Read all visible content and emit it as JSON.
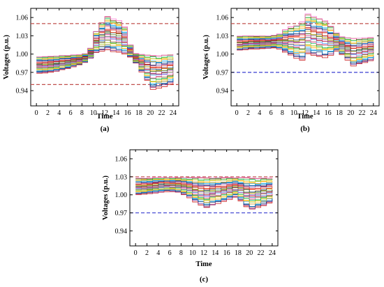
{
  "chart_data": [
    {
      "type": "line",
      "panel_label": "(a)",
      "xlabel": "Time",
      "ylabel": "Voltages (p.u.)",
      "xlim": [
        -1,
        25
      ],
      "ylim": [
        0.915,
        1.075
      ],
      "xticks": [
        0,
        2,
        4,
        6,
        8,
        10,
        12,
        14,
        16,
        18,
        20,
        22,
        24
      ],
      "yticks": [
        0.94,
        0.97,
        1.0,
        1.03,
        1.06
      ],
      "ytick_labels": [
        "0.94",
        "0.97",
        "1.00",
        "1.03",
        "1.06"
      ],
      "grid": false,
      "limits": [
        {
          "value": 1.05,
          "color": "#c0504d",
          "style": "dashed"
        },
        {
          "value": 0.95,
          "color": "#c0504d",
          "style": "dashed"
        }
      ],
      "band": [
        0.966,
        1.0
      ],
      "envelope": {
        "x": [
          0,
          1,
          2,
          3,
          4,
          5,
          6,
          7,
          8,
          9,
          10,
          11,
          12,
          13,
          14,
          15,
          16,
          17,
          18,
          19,
          20,
          21,
          22,
          23,
          24
        ],
        "low": [
          0.968,
          0.969,
          0.97,
          0.971,
          0.974,
          0.976,
          0.979,
          0.982,
          0.986,
          0.993,
          1.002,
          1.005,
          1.006,
          1.004,
          1.003,
          1.0,
          0.995,
          0.985,
          0.97,
          0.956,
          0.942,
          0.944,
          0.946,
          0.95,
          0.955
        ],
        "high": [
          0.996,
          0.996,
          0.997,
          0.997,
          0.998,
          0.998,
          0.999,
          0.999,
          1.001,
          1.01,
          1.038,
          1.052,
          1.062,
          1.058,
          1.055,
          1.045,
          1.015,
          1.001,
          1.0,
          0.999,
          0.998,
          0.998,
          0.999,
          0.999,
          1.0
        ]
      },
      "series_count": 32
    },
    {
      "type": "line",
      "panel_label": "(b)",
      "xlabel": "Time",
      "ylabel": "Voltages (p.u.)",
      "xlim": [
        -1,
        25
      ],
      "ylim": [
        0.915,
        1.075
      ],
      "xticks": [
        0,
        2,
        4,
        6,
        8,
        10,
        12,
        14,
        16,
        18,
        20,
        22,
        24
      ],
      "yticks": [
        0.94,
        0.97,
        1.0,
        1.03,
        1.06
      ],
      "ytick_labels": [
        "0.94",
        "0.97",
        "1.00",
        "1.03",
        "1.06"
      ],
      "grid": false,
      "limits": [
        {
          "value": 1.05,
          "color": "#c0504d",
          "style": "dashed"
        },
        {
          "value": 0.97,
          "color": "#3a3fd0",
          "style": "dashed"
        }
      ],
      "band": [
        1.005,
        1.03
      ],
      "envelope": {
        "x": [
          0,
          1,
          2,
          3,
          4,
          5,
          6,
          7,
          8,
          9,
          10,
          11,
          12,
          13,
          14,
          15,
          16,
          17,
          18,
          19,
          20,
          21,
          22,
          23,
          24
        ],
        "low": [
          1.006,
          1.007,
          1.008,
          1.008,
          1.009,
          1.009,
          1.01,
          1.008,
          1.003,
          0.998,
          0.992,
          0.99,
          1.0,
          0.998,
          0.996,
          0.994,
          0.998,
          1.005,
          0.999,
          0.99,
          0.98,
          0.983,
          0.986,
          0.989,
          0.993
        ],
        "high": [
          1.03,
          1.03,
          1.03,
          1.03,
          1.03,
          1.03,
          1.031,
          1.033,
          1.04,
          1.045,
          1.048,
          1.053,
          1.066,
          1.062,
          1.058,
          1.055,
          1.046,
          1.035,
          1.029,
          1.027,
          1.026,
          1.026,
          1.027,
          1.028,
          1.028
        ]
      },
      "series_count": 32
    },
    {
      "type": "line",
      "panel_label": "(c)",
      "xlabel": "Time",
      "ylabel": "Voltages (p.u.)",
      "xlim": [
        -1,
        25
      ],
      "ylim": [
        0.915,
        1.075
      ],
      "xticks": [
        0,
        2,
        4,
        6,
        8,
        10,
        12,
        14,
        16,
        18,
        20,
        22,
        24
      ],
      "yticks": [
        0.94,
        0.97,
        1.0,
        1.03,
        1.06
      ],
      "ytick_labels": [
        "0.94",
        "0.97",
        "1.00",
        "1.03",
        "1.06"
      ],
      "grid": false,
      "limits": [
        {
          "value": 1.03,
          "color": "#c0504d",
          "style": "dashed"
        },
        {
          "value": 0.97,
          "color": "#3a3fd0",
          "style": "dashed"
        }
      ],
      "band": [
        1.0,
        1.029
      ],
      "envelope": {
        "x": [
          0,
          1,
          2,
          3,
          4,
          5,
          6,
          7,
          8,
          9,
          10,
          11,
          12,
          13,
          14,
          15,
          16,
          17,
          18,
          19,
          20,
          21,
          22,
          23,
          24
        ],
        "low": [
          1.0,
          1.001,
          1.002,
          1.003,
          1.004,
          1.005,
          1.005,
          1.004,
          1.0,
          0.995,
          0.988,
          0.983,
          0.978,
          0.982,
          0.985,
          0.988,
          0.992,
          0.996,
          0.99,
          0.98,
          0.975,
          0.978,
          0.982,
          0.986,
          0.99
        ],
        "high": [
          1.028,
          1.028,
          1.028,
          1.029,
          1.029,
          1.029,
          1.029,
          1.029,
          1.029,
          1.029,
          1.029,
          1.029,
          1.029,
          1.029,
          1.029,
          1.029,
          1.029,
          1.029,
          1.029,
          1.029,
          1.028,
          1.028,
          1.028,
          1.028,
          1.028
        ]
      },
      "series_count": 32
    }
  ],
  "palette": [
    "#c00000",
    "#e06060",
    "#7030a0",
    "#002060",
    "#0070c0",
    "#00b0f0",
    "#ff9900",
    "#ffc000",
    "#92d050",
    "#00b050",
    "#8b4513",
    "#ff66cc",
    "#3399ff",
    "#996633",
    "#cc0066",
    "#666699",
    "#336600",
    "#cc9900",
    "#003366",
    "#ff3300"
  ]
}
